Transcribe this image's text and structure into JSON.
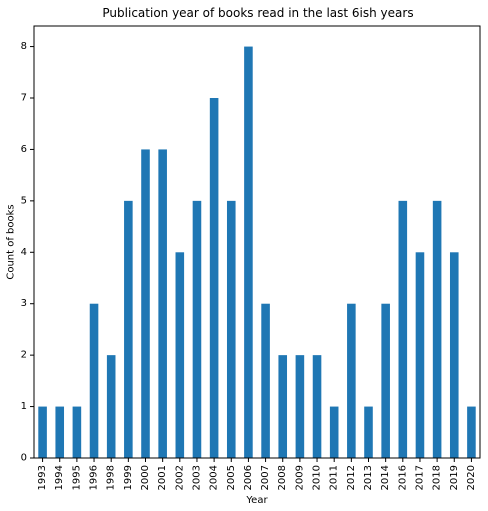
{
  "chart_data": {
    "type": "bar",
    "title": "Publication year of books read in the last 6ish years",
    "xlabel": "Year",
    "ylabel": "Count of books",
    "categories": [
      "1993",
      "1994",
      "1995",
      "1996",
      "1998",
      "1999",
      "2000",
      "2001",
      "2002",
      "2003",
      "2004",
      "2005",
      "2006",
      "2007",
      "2008",
      "2009",
      "2010",
      "2011",
      "2012",
      "2013",
      "2014",
      "2016",
      "2017",
      "2018",
      "2019",
      "2020"
    ],
    "values": [
      1,
      1,
      1,
      3,
      2,
      5,
      6,
      6,
      4,
      5,
      7,
      5,
      8,
      3,
      2,
      2,
      2,
      1,
      3,
      1,
      3,
      5,
      4,
      5,
      4,
      1
    ],
    "ylim": [
      0,
      8.4
    ],
    "yticks": [
      0,
      1,
      2,
      3,
      4,
      5,
      6,
      7,
      8
    ],
    "grid": false,
    "legend": "none",
    "bar_color": "#1f77b4"
  }
}
